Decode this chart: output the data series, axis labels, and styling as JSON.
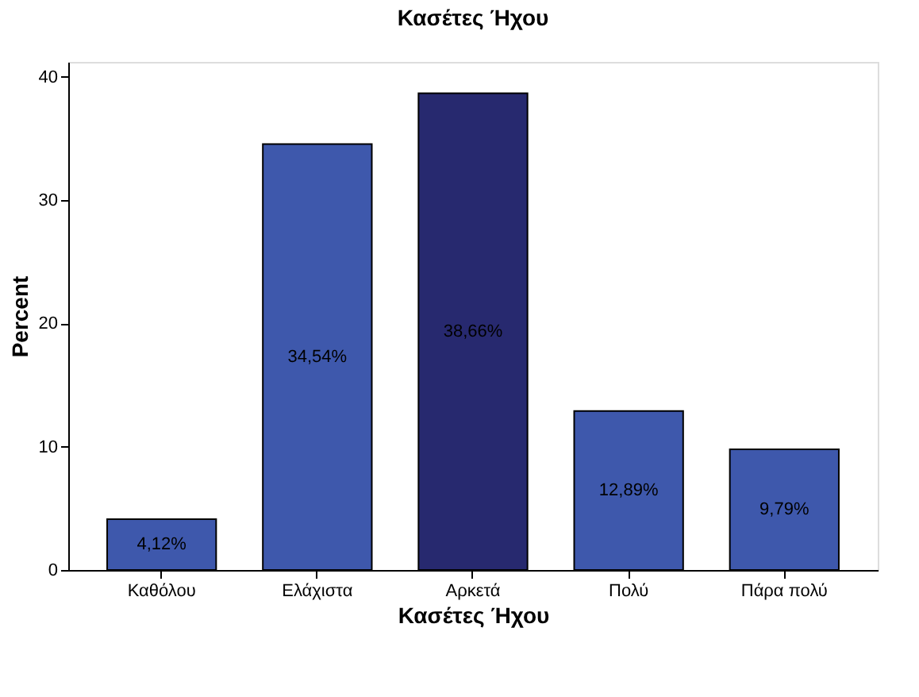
{
  "chart_data": {
    "type": "bar",
    "title": "Κασέτες Ήχου",
    "xlabel": "Κασέτες Ήχου",
    "ylabel": "Percent",
    "categories": [
      "Καθόλου",
      "Ελάχιστα",
      "Αρκετά",
      "Πολύ",
      "Πάρα πολύ"
    ],
    "values": [
      4.12,
      34.54,
      38.66,
      12.89,
      9.79
    ],
    "colors": [
      "#3e58ac",
      "#3e58ac",
      "#27296f",
      "#3e58ac",
      "#3e58ac"
    ],
    "value_labels": [
      "4,12%",
      "34,54%",
      "38,66%",
      "12,89%",
      "9,79%"
    ],
    "ylim": [
      0,
      41.2
    ],
    "yticks": [
      0,
      10,
      20,
      30,
      40
    ],
    "grid": false
  }
}
